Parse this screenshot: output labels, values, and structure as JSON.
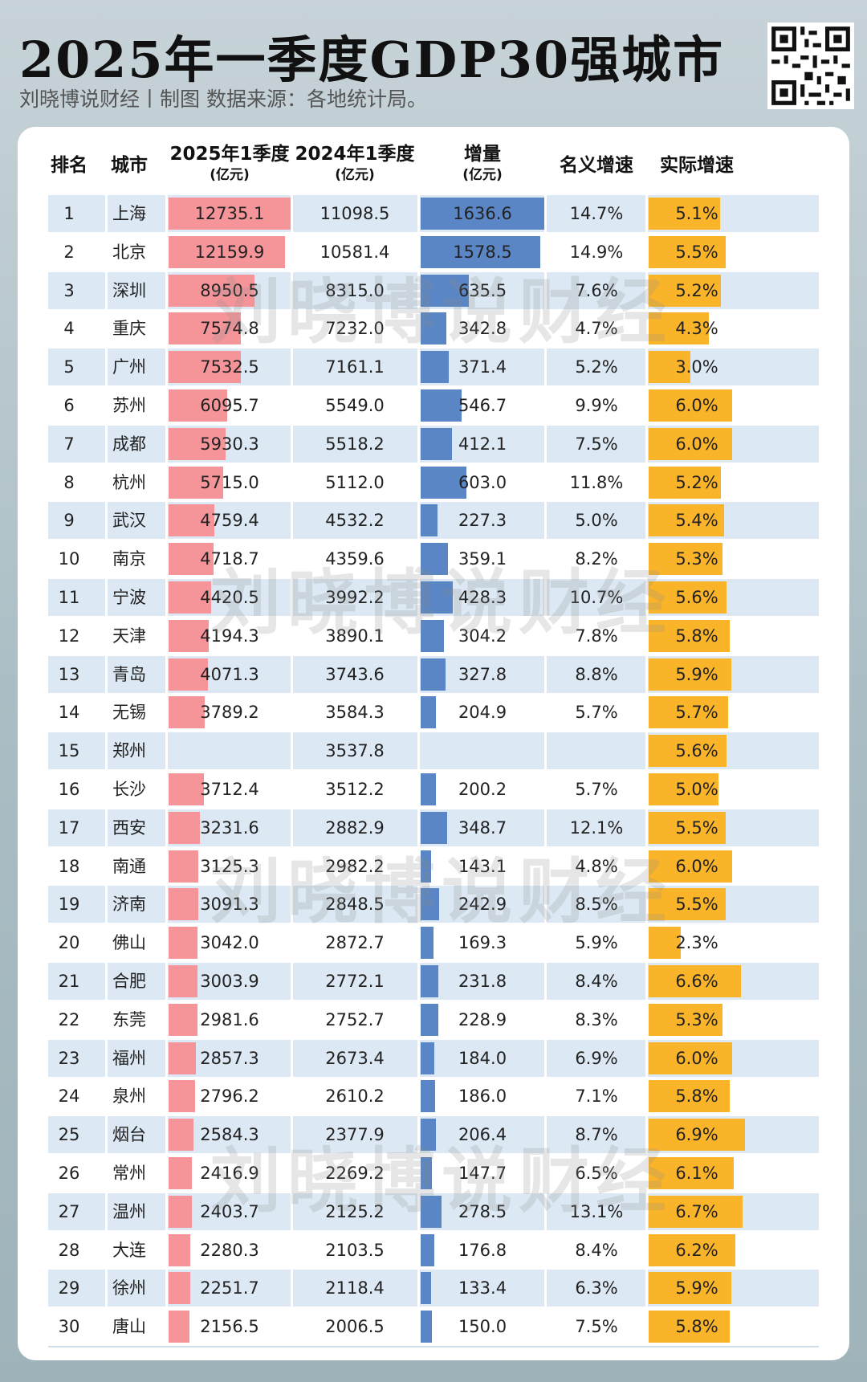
{
  "title": "2025年一季度GDP30强城市",
  "subtitle": "刘晓博说财经丨制图    数据来源：各地统计局。",
  "watermark": "刘晓博说财经",
  "colors": {
    "gdp2025_bar": "#f5959a",
    "increase_bar": "#5a86c5",
    "real_growth_bar": "#f9b42a",
    "row_alt": "#dce8f3"
  },
  "headers": {
    "rank": "排名",
    "city": "城市",
    "gdp2025": "2025年1季度",
    "gdp2025_unit": "(亿元)",
    "gdp2024": "2024年1季度",
    "gdp2024_unit": "(亿元)",
    "increase": "增量",
    "increase_unit": "(亿元)",
    "nominal": "名义增速",
    "real": "实际增速"
  },
  "chart_data": {
    "type": "table",
    "columns": [
      "排名",
      "城市",
      "2025年1季度(亿元)",
      "2024年1季度(亿元)",
      "增量(亿元)",
      "名义增速",
      "实际增速"
    ],
    "rows": [
      {
        "rank": "1",
        "city": "上海",
        "gdp2025": "12735.1",
        "gdp2024": "11098.5",
        "increase": "1636.6",
        "nominal": "14.7%",
        "real": "5.1%"
      },
      {
        "rank": "2",
        "city": "北京",
        "gdp2025": "12159.9",
        "gdp2024": "10581.4",
        "increase": "1578.5",
        "nominal": "14.9%",
        "real": "5.5%"
      },
      {
        "rank": "3",
        "city": "深圳",
        "gdp2025": "8950.5",
        "gdp2024": "8315.0",
        "increase": "635.5",
        "nominal": "7.6%",
        "real": "5.2%"
      },
      {
        "rank": "4",
        "city": "重庆",
        "gdp2025": "7574.8",
        "gdp2024": "7232.0",
        "increase": "342.8",
        "nominal": "4.7%",
        "real": "4.3%"
      },
      {
        "rank": "5",
        "city": "广州",
        "gdp2025": "7532.5",
        "gdp2024": "7161.1",
        "increase": "371.4",
        "nominal": "5.2%",
        "real": "3.0%"
      },
      {
        "rank": "6",
        "city": "苏州",
        "gdp2025": "6095.7",
        "gdp2024": "5549.0",
        "increase": "546.7",
        "nominal": "9.9%",
        "real": "6.0%"
      },
      {
        "rank": "7",
        "city": "成都",
        "gdp2025": "5930.3",
        "gdp2024": "5518.2",
        "increase": "412.1",
        "nominal": "7.5%",
        "real": "6.0%"
      },
      {
        "rank": "8",
        "city": "杭州",
        "gdp2025": "5715.0",
        "gdp2024": "5112.0",
        "increase": "603.0",
        "nominal": "11.8%",
        "real": "5.2%"
      },
      {
        "rank": "9",
        "city": "武汉",
        "gdp2025": "4759.4",
        "gdp2024": "4532.2",
        "increase": "227.3",
        "nominal": "5.0%",
        "real": "5.4%"
      },
      {
        "rank": "10",
        "city": "南京",
        "gdp2025": "4718.7",
        "gdp2024": "4359.6",
        "increase": "359.1",
        "nominal": "8.2%",
        "real": "5.3%"
      },
      {
        "rank": "11",
        "city": "宁波",
        "gdp2025": "4420.5",
        "gdp2024": "3992.2",
        "increase": "428.3",
        "nominal": "10.7%",
        "real": "5.6%"
      },
      {
        "rank": "12",
        "city": "天津",
        "gdp2025": "4194.3",
        "gdp2024": "3890.1",
        "increase": "304.2",
        "nominal": "7.8%",
        "real": "5.8%"
      },
      {
        "rank": "13",
        "city": "青岛",
        "gdp2025": "4071.3",
        "gdp2024": "3743.6",
        "increase": "327.8",
        "nominal": "8.8%",
        "real": "5.9%"
      },
      {
        "rank": "14",
        "city": "无锡",
        "gdp2025": "3789.2",
        "gdp2024": "3584.3",
        "increase": "204.9",
        "nominal": "5.7%",
        "real": "5.7%"
      },
      {
        "rank": "15",
        "city": "郑州",
        "gdp2025": "",
        "gdp2024": "3537.8",
        "increase": "",
        "nominal": "",
        "real": "5.6%"
      },
      {
        "rank": "16",
        "city": "长沙",
        "gdp2025": "3712.4",
        "gdp2024": "3512.2",
        "increase": "200.2",
        "nominal": "5.7%",
        "real": "5.0%"
      },
      {
        "rank": "17",
        "city": "西安",
        "gdp2025": "3231.6",
        "gdp2024": "2882.9",
        "increase": "348.7",
        "nominal": "12.1%",
        "real": "5.5%"
      },
      {
        "rank": "18",
        "city": "南通",
        "gdp2025": "3125.3",
        "gdp2024": "2982.2",
        "increase": "143.1",
        "nominal": "4.8%",
        "real": "6.0%"
      },
      {
        "rank": "19",
        "city": "济南",
        "gdp2025": "3091.3",
        "gdp2024": "2848.5",
        "increase": "242.9",
        "nominal": "8.5%",
        "real": "5.5%"
      },
      {
        "rank": "20",
        "city": "佛山",
        "gdp2025": "3042.0",
        "gdp2024": "2872.7",
        "increase": "169.3",
        "nominal": "5.9%",
        "real": "2.3%"
      },
      {
        "rank": "21",
        "city": "合肥",
        "gdp2025": "3003.9",
        "gdp2024": "2772.1",
        "increase": "231.8",
        "nominal": "8.4%",
        "real": "6.6%"
      },
      {
        "rank": "22",
        "city": "东莞",
        "gdp2025": "2981.6",
        "gdp2024": "2752.7",
        "increase": "228.9",
        "nominal": "8.3%",
        "real": "5.3%"
      },
      {
        "rank": "23",
        "city": "福州",
        "gdp2025": "2857.3",
        "gdp2024": "2673.4",
        "increase": "184.0",
        "nominal": "6.9%",
        "real": "6.0%"
      },
      {
        "rank": "24",
        "city": "泉州",
        "gdp2025": "2796.2",
        "gdp2024": "2610.2",
        "increase": "186.0",
        "nominal": "7.1%",
        "real": "5.8%"
      },
      {
        "rank": "25",
        "city": "烟台",
        "gdp2025": "2584.3",
        "gdp2024": "2377.9",
        "increase": "206.4",
        "nominal": "8.7%",
        "real": "6.9%"
      },
      {
        "rank": "26",
        "city": "常州",
        "gdp2025": "2416.9",
        "gdp2024": "2269.2",
        "increase": "147.7",
        "nominal": "6.5%",
        "real": "6.1%"
      },
      {
        "rank": "27",
        "city": "温州",
        "gdp2025": "2403.7",
        "gdp2024": "2125.2",
        "increase": "278.5",
        "nominal": "13.1%",
        "real": "6.7%"
      },
      {
        "rank": "28",
        "city": "大连",
        "gdp2025": "2280.3",
        "gdp2024": "2103.5",
        "increase": "176.8",
        "nominal": "8.4%",
        "real": "6.2%"
      },
      {
        "rank": "29",
        "city": "徐州",
        "gdp2025": "2251.7",
        "gdp2024": "2118.4",
        "increase": "133.4",
        "nominal": "6.3%",
        "real": "5.9%"
      },
      {
        "rank": "30",
        "city": "唐山",
        "gdp2025": "2156.5",
        "gdp2024": "2006.5",
        "increase": "150.0",
        "nominal": "7.5%",
        "real": "5.8%"
      }
    ]
  }
}
